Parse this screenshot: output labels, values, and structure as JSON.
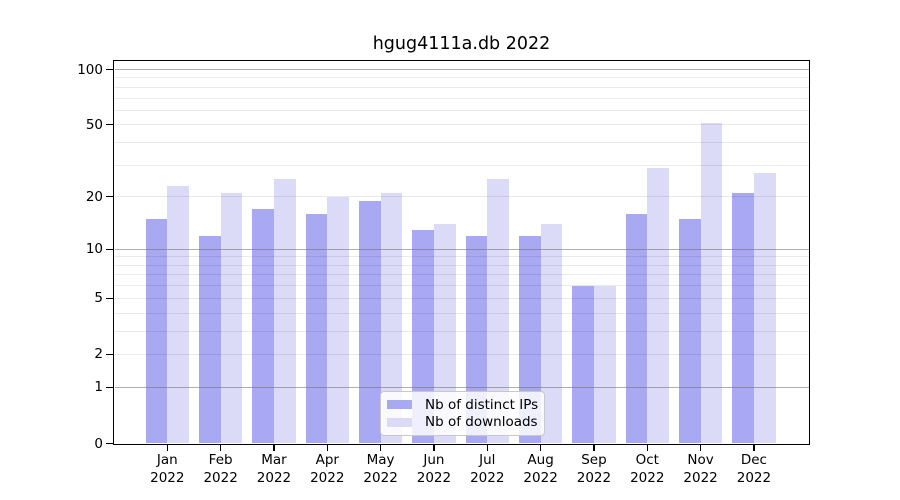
{
  "title": "hgug4111a.db 2022",
  "chart_data": {
    "type": "bar",
    "title": "hgug4111a.db 2022",
    "categories": [
      "Jan 2022",
      "Feb 2022",
      "Mar 2022",
      "Apr 2022",
      "May 2022",
      "Jun 2022",
      "Jul 2022",
      "Aug 2022",
      "Sep 2022",
      "Oct 2022",
      "Nov 2022",
      "Dec 2022"
    ],
    "series": [
      {
        "name": "Nb of distinct IPs",
        "color": "#a8a8f3",
        "values": [
          15,
          12,
          17,
          16,
          19,
          13,
          12,
          12,
          6,
          16,
          15,
          21
        ]
      },
      {
        "name": "Nb of downloads",
        "color": "#dbdbf8",
        "values": [
          23,
          21,
          25,
          20,
          21,
          14,
          25,
          14,
          6,
          29,
          51,
          27
        ]
      }
    ],
    "y_scale": "log10(value+1)",
    "y_ticks": [
      100,
      50,
      20,
      10,
      5,
      2,
      1,
      0
    ],
    "ylim": [
      0,
      112
    ],
    "grid": "horizontal",
    "grid_major_values": [
      1,
      10,
      100
    ],
    "grid_minor_values": [
      2,
      3,
      4,
      5,
      6,
      7,
      8,
      9,
      20,
      30,
      40,
      50,
      60,
      70,
      80,
      90
    ],
    "legend_position": "lower center",
    "xlabel": "",
    "ylabel": ""
  }
}
